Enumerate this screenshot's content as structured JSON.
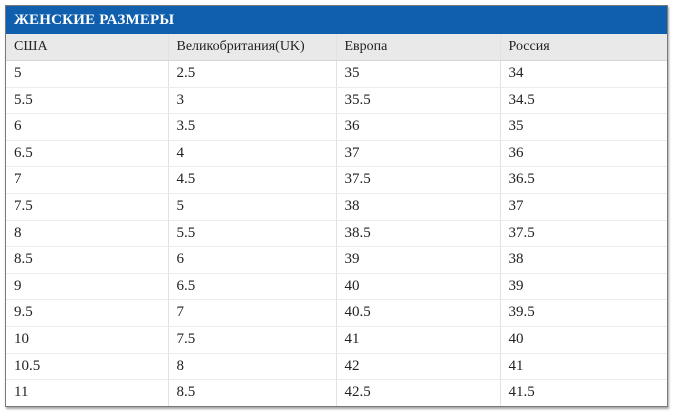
{
  "title": "ЖЕНСКИЕ РАЗМЕРЫ",
  "headers": [
    "США",
    "Великобритания(UK)",
    "Европа",
    "Россия"
  ],
  "rows": [
    [
      "5",
      "2.5",
      "35",
      "34"
    ],
    [
      "5.5",
      "3",
      "35.5",
      "34.5"
    ],
    [
      "6",
      "3.5",
      "36",
      "35"
    ],
    [
      "6.5",
      "4",
      "37",
      "36"
    ],
    [
      "7",
      "4.5",
      "37.5",
      "36.5"
    ],
    [
      "7.5",
      "5",
      "38",
      "37"
    ],
    [
      "8",
      "5.5",
      "38.5",
      "37.5"
    ],
    [
      "8.5",
      "6",
      "39",
      "38"
    ],
    [
      "9",
      "6.5",
      "40",
      "39"
    ],
    [
      "9.5",
      "7",
      "40.5",
      "39.5"
    ],
    [
      "10",
      "7.5",
      "41",
      "40"
    ],
    [
      "10.5",
      "8",
      "42",
      "41"
    ],
    [
      "11",
      "8.5",
      "42.5",
      "41.5"
    ]
  ],
  "colors": {
    "title_bg": "#0f5fae",
    "header_bg": "#e9e9e9"
  }
}
